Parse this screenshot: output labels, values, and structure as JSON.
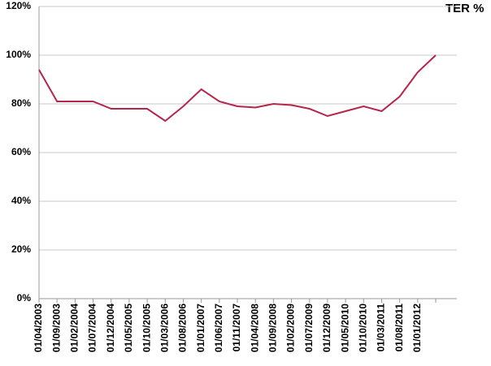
{
  "chart_data": {
    "type": "line",
    "title": "TER %",
    "categories": [
      "01/04/2003",
      "01/09/2003",
      "01/02/2004",
      "01/07/2004",
      "01/12/2004",
      "01/05/2005",
      "01/10/2005",
      "01/03/2006",
      "01/08/2006",
      "01/01/2007",
      "01/06/2007",
      "01/11/2007",
      "01/04/2008",
      "01/09/2008",
      "01/02/2009",
      "01/07/2009",
      "01/12/2009",
      "01/05/2010",
      "01/10/2010",
      "01/03/2011",
      "01/08/2011",
      "01/01/2012",
      null
    ],
    "series": [
      {
        "color": "#b5264a",
        "values": [
          94,
          81,
          81,
          81,
          78,
          78,
          78,
          73,
          79,
          86,
          81,
          79,
          78.5,
          80,
          79.5,
          78,
          75,
          77,
          79,
          77,
          83,
          93,
          100
        ]
      }
    ],
    "ylim": [
      0,
      120
    ],
    "yticks": [
      {
        "value": 0,
        "label": "0%"
      },
      {
        "value": 20,
        "label": "20%"
      },
      {
        "value": 40,
        "label": "40%"
      },
      {
        "value": 60,
        "label": "60%"
      },
      {
        "value": 80,
        "label": "80%"
      },
      {
        "value": 100,
        "label": "100%"
      },
      {
        "value": 120,
        "label": "120%"
      }
    ],
    "grid": true
  }
}
